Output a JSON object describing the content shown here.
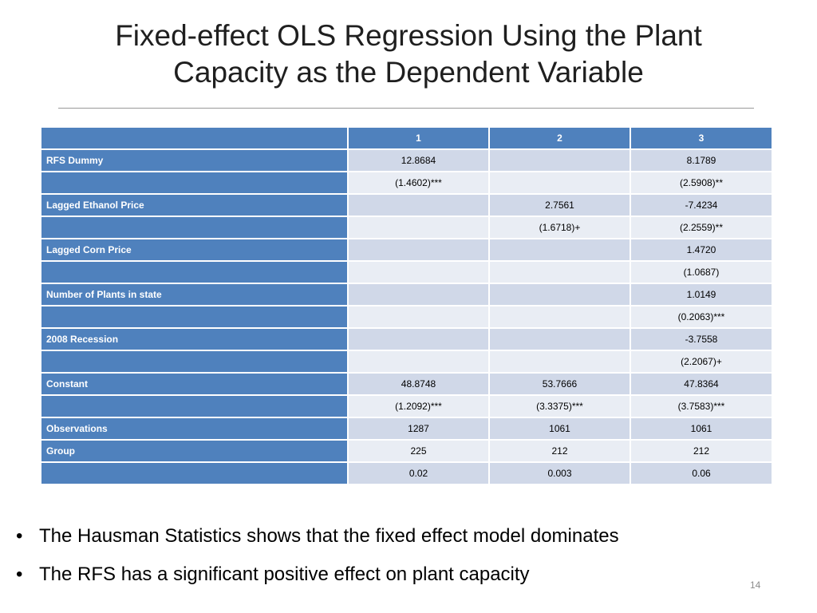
{
  "slide": {
    "title_line1": "Fixed-effect OLS Regression Using the Plant",
    "title_line2": "Capacity as the Dependent Variable",
    "page_number": "14"
  },
  "table": {
    "headers": [
      "",
      "1",
      "2",
      "3"
    ],
    "rows": [
      {
        "label": "RFS Dummy",
        "cells": [
          "12.8684",
          "",
          "8.1789"
        ]
      },
      {
        "label": "",
        "cells": [
          "(1.4602)***",
          "",
          "(2.5908)**"
        ]
      },
      {
        "label": "Lagged Ethanol Price",
        "cells": [
          "",
          "2.7561",
          "-7.4234"
        ]
      },
      {
        "label": "",
        "cells": [
          "",
          "(1.6718)+",
          "(2.2559)**"
        ]
      },
      {
        "label": "Lagged Corn Price",
        "cells": [
          "",
          "",
          "1.4720"
        ]
      },
      {
        "label": "",
        "cells": [
          "",
          "",
          "(1.0687)"
        ]
      },
      {
        "label": "Number of Plants in state",
        "cells": [
          "",
          "",
          "1.0149"
        ]
      },
      {
        "label": "",
        "cells": [
          "",
          "",
          "(0.2063)***"
        ]
      },
      {
        "label": "2008 Recession",
        "cells": [
          "",
          "",
          "-3.7558"
        ]
      },
      {
        "label": "",
        "cells": [
          "",
          "",
          "(2.2067)+"
        ]
      },
      {
        "label": "Constant",
        "cells": [
          "48.8748",
          "53.7666",
          "47.8364"
        ]
      },
      {
        "label": "",
        "cells": [
          "(1.2092)***",
          "(3.3375)***",
          "(3.7583)***"
        ]
      },
      {
        "label": "Observations",
        "cells": [
          "1287",
          "1061",
          "1061"
        ]
      },
      {
        "label": "Group",
        "cells": [
          "225",
          "212",
          "212"
        ]
      },
      {
        "label": "",
        "cells": [
          "0.02",
          "0.003",
          "0.06"
        ]
      }
    ]
  },
  "bullets": [
    "The Hausman Statistics shows that the fixed effect model dominates",
    "The RFS has a significant positive effect on plant capacity"
  ],
  "colors": {
    "header_blue": "#4f81bd",
    "row_dark": "#d0d8e8",
    "row_light": "#e9edf4"
  }
}
